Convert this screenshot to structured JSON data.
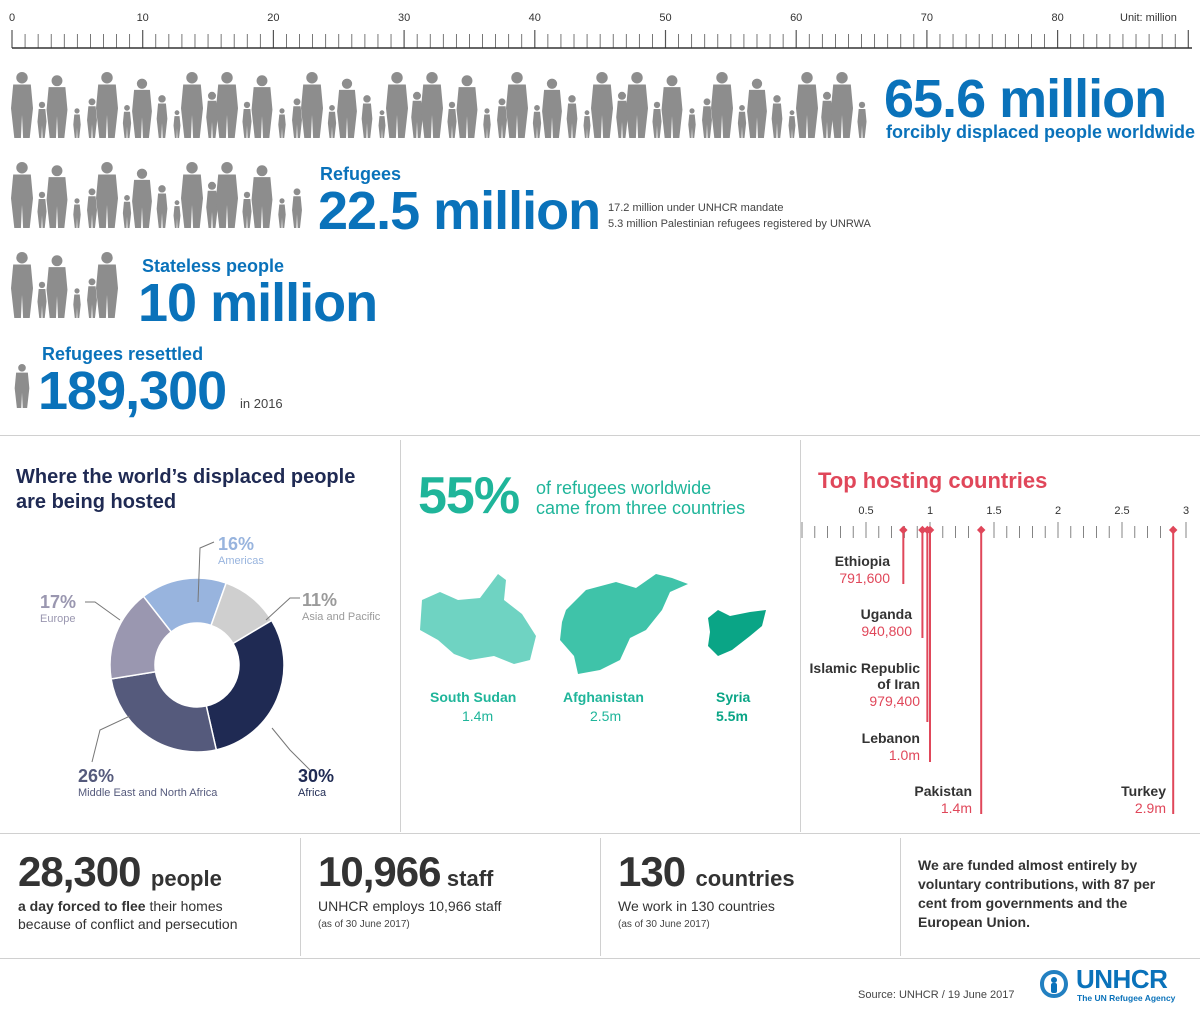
{
  "scale": {
    "unit_label": "Unit: million",
    "ticks": [
      "0",
      "10",
      "20",
      "30",
      "40",
      "50",
      "60",
      "70",
      "80"
    ]
  },
  "displaced": {
    "value": "65.6 million",
    "caption": "forcibly displaced people worldwide"
  },
  "refugees": {
    "label": "Refugees",
    "value": "22.5 million",
    "note1": "17.2 million under UNHCR mandate",
    "note2": "5.3 million Palestinian refugees registered by UNRWA"
  },
  "stateless": {
    "label": "Stateless people",
    "value": "10 million"
  },
  "resettled": {
    "label": "Refugees resettled",
    "value": "189,300",
    "suffix": "in 2016"
  },
  "hosted": {
    "title_line1": "Where the world’s displaced people",
    "title_line2": "are being hosted",
    "chart_data": {
      "type": "pie",
      "categories": [
        "Americas",
        "Asia and Pacific",
        "Africa",
        "Middle East and North Africa",
        "Europe"
      ],
      "values": [
        16,
        11,
        30,
        26,
        17
      ],
      "colors": [
        "#98b4de",
        "#cfcfcf",
        "#1f2a53",
        "#555a7c",
        "#9a97b0"
      ]
    },
    "labels": [
      {
        "pct": "16%",
        "name": "Americas"
      },
      {
        "pct": "11%",
        "name": "Asia and Pacific"
      },
      {
        "pct": "30%",
        "name": "Africa"
      },
      {
        "pct": "26%",
        "name": "Middle East and North Africa"
      },
      {
        "pct": "17%",
        "name": "Europe"
      }
    ]
  },
  "origin": {
    "pct": "55%",
    "line1": "of refugees worldwide",
    "line2": "came from three countries",
    "countries": [
      {
        "name": "South Sudan",
        "value": "1.4m",
        "color": "#6fd3c2"
      },
      {
        "name": "Afghanistan",
        "value": "2.5m",
        "color": "#3fc3a9"
      },
      {
        "name": "Syria",
        "value": "5.5m",
        "color": "#0aa586"
      }
    ]
  },
  "hosting": {
    "title": "Top hosting countries",
    "chart_data": {
      "type": "bar",
      "title": "Top hosting countries",
      "xlim": [
        0,
        3
      ],
      "ticks": [
        "0.5",
        "1",
        "1.5",
        "2",
        "2.5",
        "3"
      ],
      "categories": [
        "Ethiopia",
        "Uganda",
        "Islamic Republic of Iran",
        "Lebanon",
        "Pakistan",
        "Turkey"
      ],
      "values": [
        0.7916,
        0.9408,
        0.9794,
        1.0,
        1.4,
        2.9
      ]
    },
    "countries": [
      {
        "name": "Ethiopia",
        "value": "791,600"
      },
      {
        "name": "Uganda",
        "value": "940,800"
      },
      {
        "name1": "Islamic Republic",
        "name2": "of Iran",
        "value": "979,400"
      },
      {
        "name": "Lebanon",
        "value": "1.0m"
      },
      {
        "name": "Pakistan",
        "value": "1.4m"
      },
      {
        "name": "Turkey",
        "value": "2.9m"
      }
    ]
  },
  "footer": {
    "f1": {
      "big": "28,300",
      "unit": "people",
      "line1a": "a day forced to flee",
      "line1b": " their homes",
      "line2": "because of conflict and persecution"
    },
    "f2": {
      "big": "10,966",
      "unit": "staff",
      "line1": "UNHCR employs 10,966 staff",
      "line2": "(as of 30 June 2017)"
    },
    "f3": {
      "big": "130",
      "unit": "countries",
      "line1": "We work in 130 countries",
      "line2": "(as of 30 June 2017)"
    },
    "f4": {
      "line1": "We are funded almost entirely by",
      "line2": "voluntary contributions, with 87 per",
      "line3": "cent from governments and the",
      "line4": "European Union."
    },
    "source": "Source: UNHCR / 19 June 2017",
    "logo_text": "UNHCR",
    "logo_sub": "The UN Refugee Agency"
  }
}
